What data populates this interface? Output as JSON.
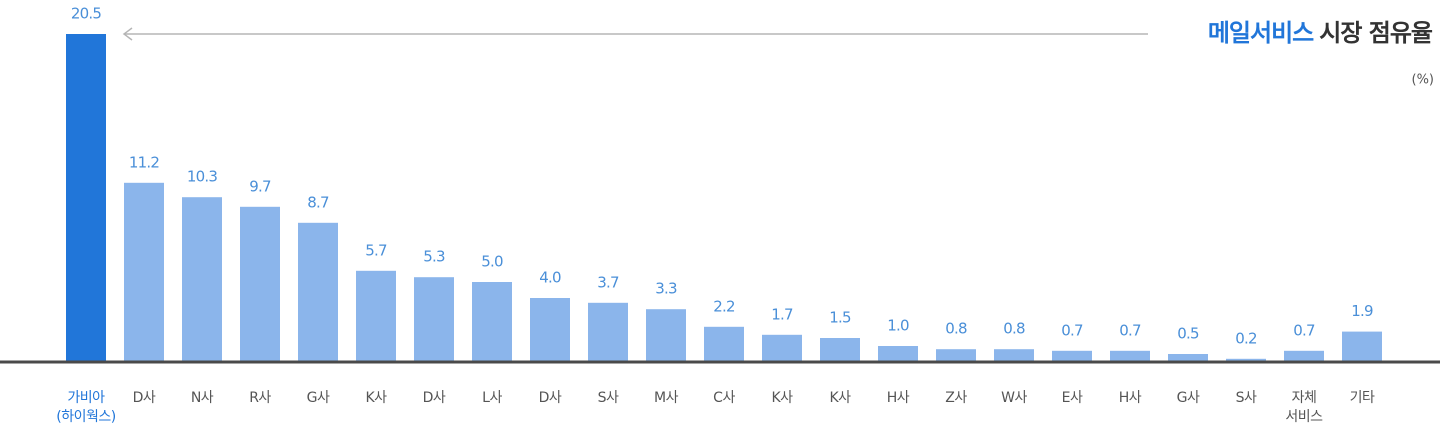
{
  "chart_data": {
    "type": "bar",
    "title_highlight": "메일서비스",
    "title": "시장 점유율",
    "unit": "(%)",
    "categories": [
      "가비아\n(하이웍스)",
      "D사",
      "N사",
      "R사",
      "G사",
      "K사",
      "D사",
      "L사",
      "D사",
      "S사",
      "M사",
      "C사",
      "K사",
      "K사",
      "H사",
      "Z사",
      "W사",
      "E사",
      "H사",
      "G사",
      "S사",
      "자체\n서비스",
      "기타"
    ],
    "values": [
      20.5,
      11.2,
      10.3,
      9.7,
      8.7,
      5.7,
      5.3,
      5.0,
      4.0,
      3.7,
      3.3,
      2.2,
      1.7,
      1.5,
      1.0,
      0.8,
      0.8,
      0.7,
      0.7,
      0.5,
      0.2,
      0.7,
      1.9
    ],
    "value_labels": [
      "20.5",
      "11.2",
      "10.3",
      "9.7",
      "8.7",
      "5.7",
      "5.3",
      "5.0",
      "4.0",
      "3.7",
      "3.3",
      "2.2",
      "1.7",
      "1.5",
      "1.0",
      "0.8",
      "0.8",
      "0.7",
      "0.7",
      "0.5",
      "0.2",
      "0.7",
      "1.9"
    ],
    "color": "#8bb5eb",
    "colors": [
      "#2176d9",
      "#8bb5eb",
      "#8bb5eb",
      "#8bb5eb",
      "#8bb5eb",
      "#8bb5eb",
      "#8bb5eb",
      "#8bb5eb",
      "#8bb5eb",
      "#8bb5eb",
      "#8bb5eb",
      "#8bb5eb",
      "#8bb5eb",
      "#8bb5eb",
      "#8bb5eb",
      "#8bb5eb",
      "#8bb5eb",
      "#8bb5eb",
      "#8bb5eb",
      "#8bb5eb",
      "#8bb5eb",
      "#8bb5eb",
      "#8bb5eb"
    ],
    "ylim": [
      0,
      20.5
    ]
  }
}
